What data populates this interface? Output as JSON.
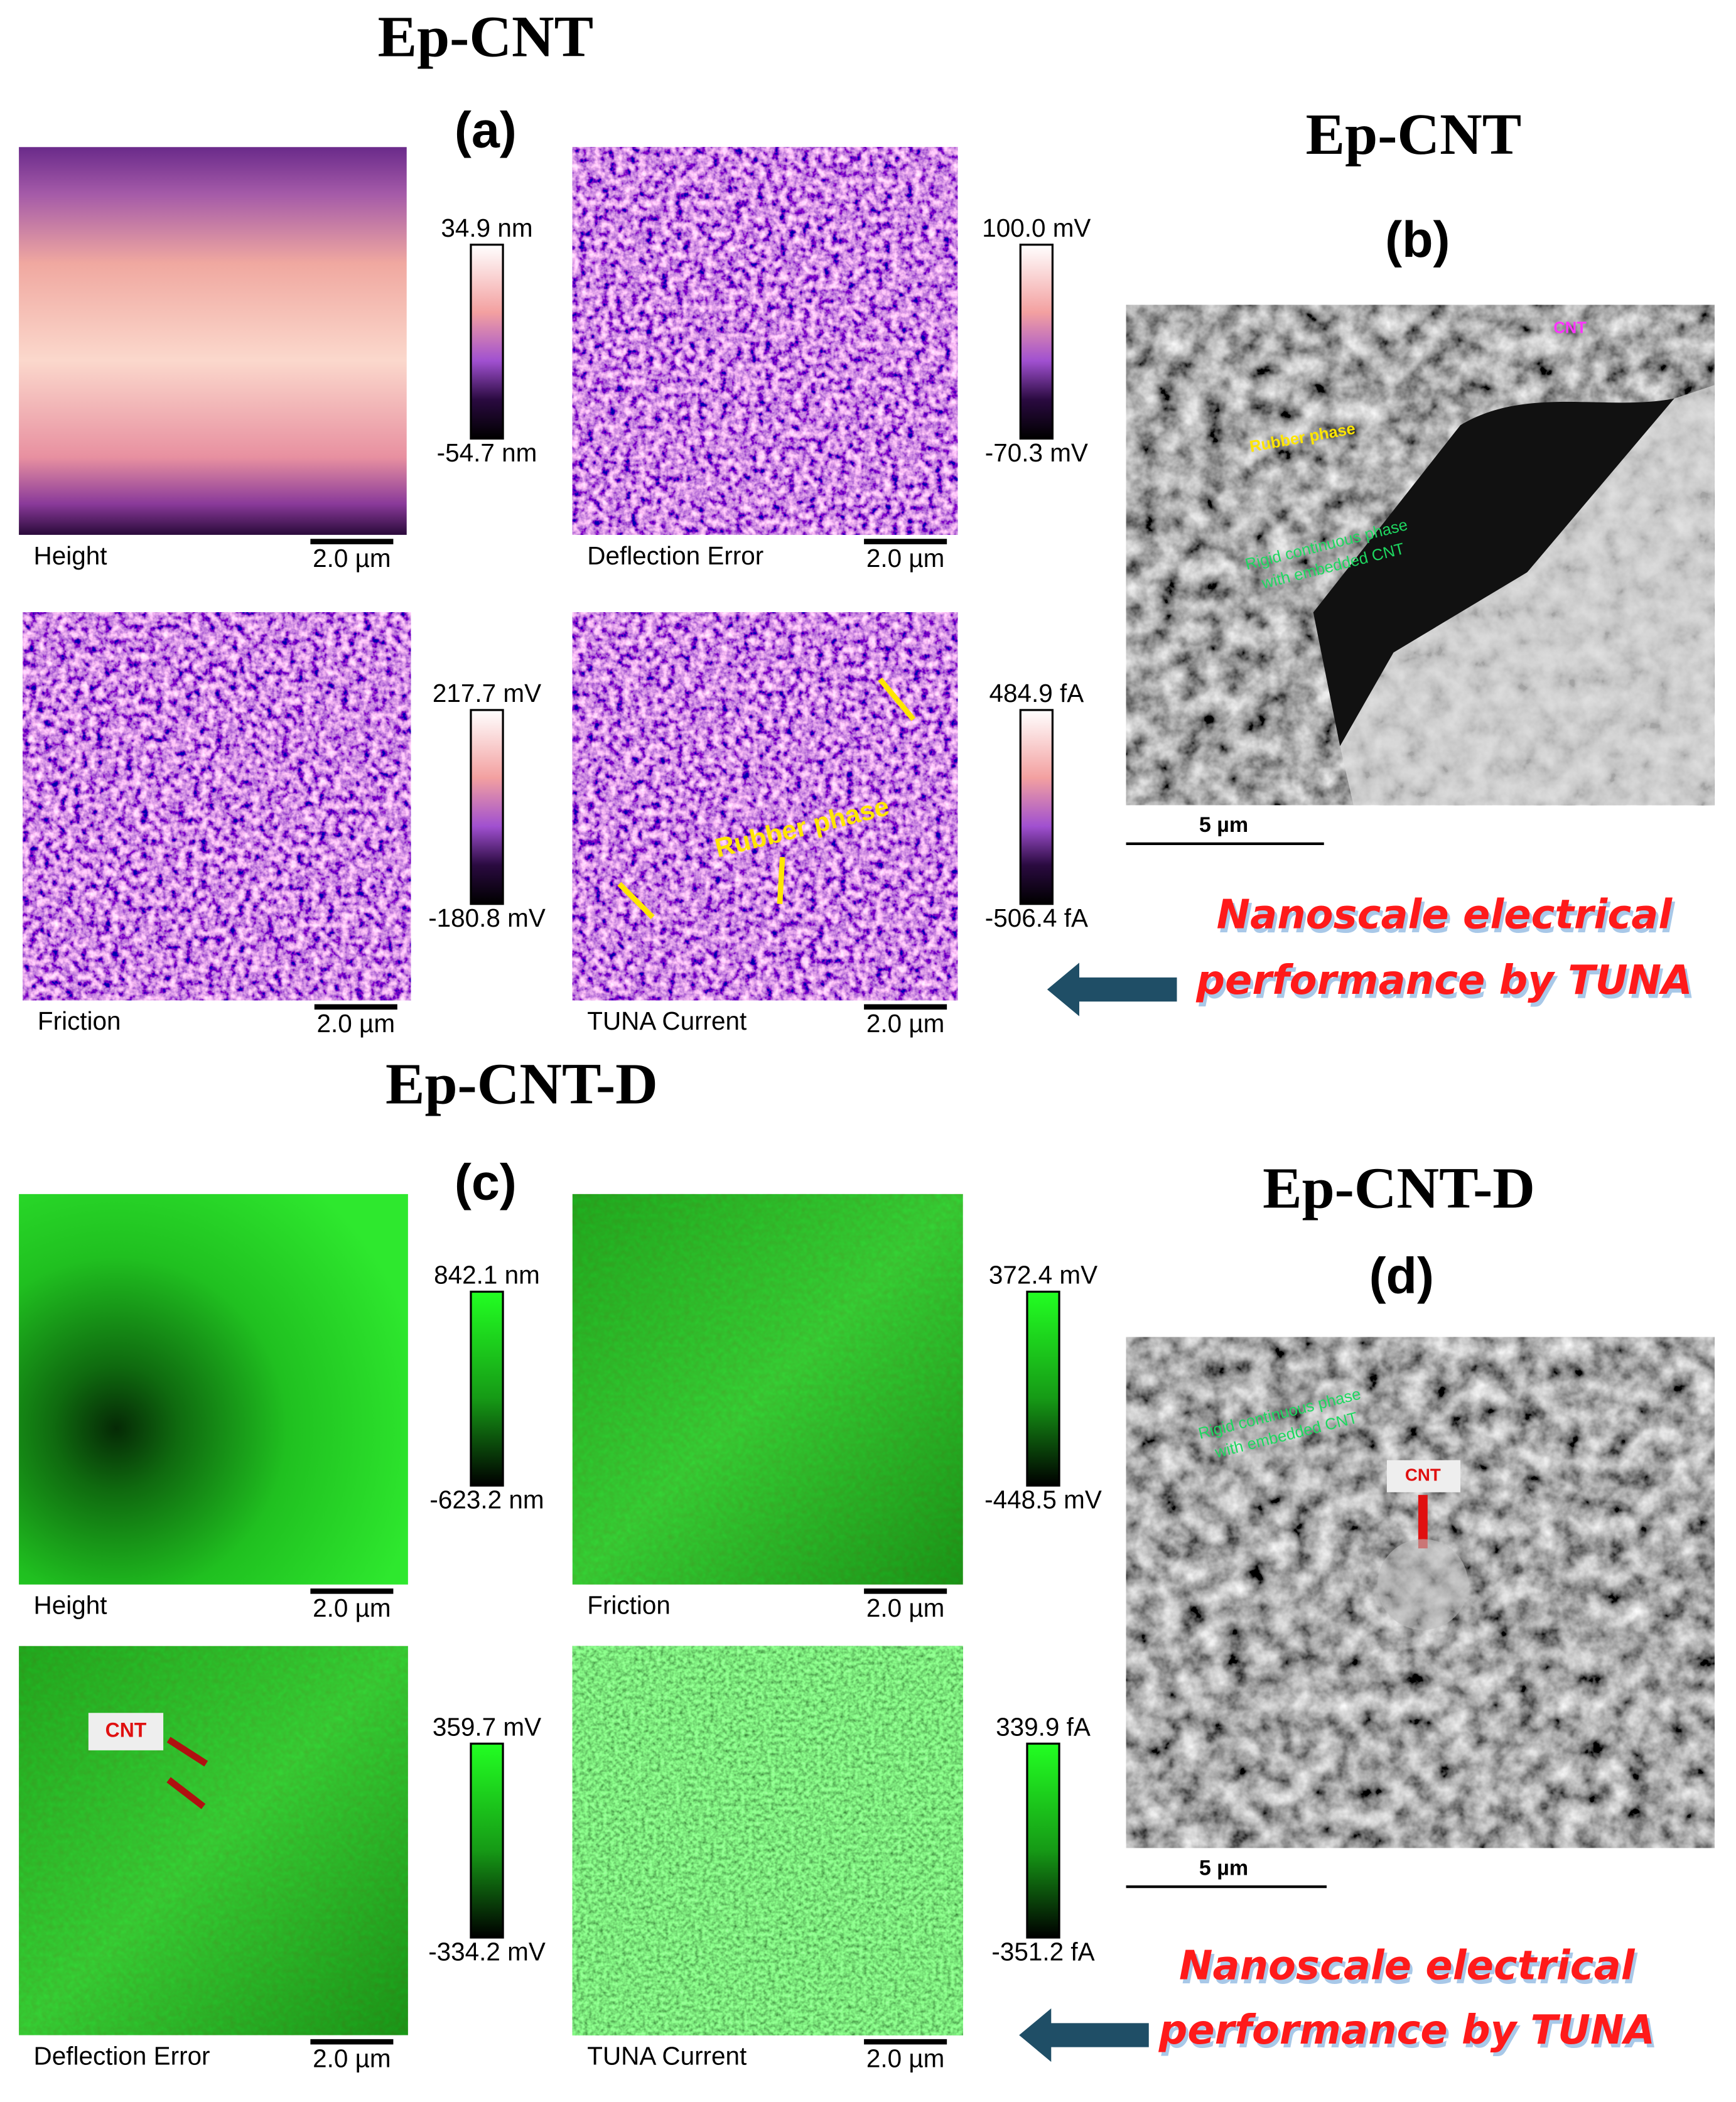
{
  "sections": [
    {
      "title": "Ep-CNT",
      "afm": {
        "label": "(a)",
        "images": [
          {
            "caption": "Height",
            "scale_bar": "2.0 µm",
            "max": "34.9 nm",
            "min": "-54.7 nm"
          },
          {
            "caption": "Deflection Error",
            "scale_bar": "2.0 µm",
            "max": "100.0 mV",
            "min": "-70.3 mV"
          },
          {
            "caption": "Friction",
            "scale_bar": "2.0 µm",
            "max": "217.7 mV",
            "min": "-180.8 mV"
          },
          {
            "caption": "TUNA Current",
            "scale_bar": "2.0 µm",
            "max": "484.9 fA",
            "min": "-506.4 fA",
            "annotation": "Rubber phase"
          }
        ]
      },
      "sem": {
        "title": "Ep-CNT",
        "label": "(b)",
        "scale_bar": "5 µm",
        "annotations": [
          "CNT",
          "Rubber phase",
          "Rigid continuous phase",
          "with embedded CNT"
        ]
      },
      "note": [
        "Nanoscale electrical",
        "performance by TUNA"
      ]
    },
    {
      "title": "Ep-CNT-D",
      "afm": {
        "label": "(c)",
        "images": [
          {
            "caption": "Height",
            "scale_bar": "2.0 µm",
            "max": "842.1 nm",
            "min": "-623.2 nm"
          },
          {
            "caption": "Friction",
            "scale_bar": "2.0 µm",
            "max": "372.4 mV",
            "min": "-448.5 mV"
          },
          {
            "caption": "Deflection Error",
            "scale_bar": "2.0 µm",
            "max": "359.7 mV",
            "min": "-334.2 mV",
            "annotation": "CNT"
          },
          {
            "caption": "TUNA Current",
            "scale_bar": "2.0 µm",
            "max": "339.9 fA",
            "min": "-351.2 fA"
          }
        ]
      },
      "sem": {
        "title": "Ep-CNT-D",
        "label": "(d)",
        "scale_bar": "5 µm",
        "annotations": [
          "Rigid continuous phase",
          "with embedded CNT",
          "CNT"
        ]
      },
      "note": [
        "Nanoscale electrical",
        "performance by TUNA"
      ]
    }
  ]
}
